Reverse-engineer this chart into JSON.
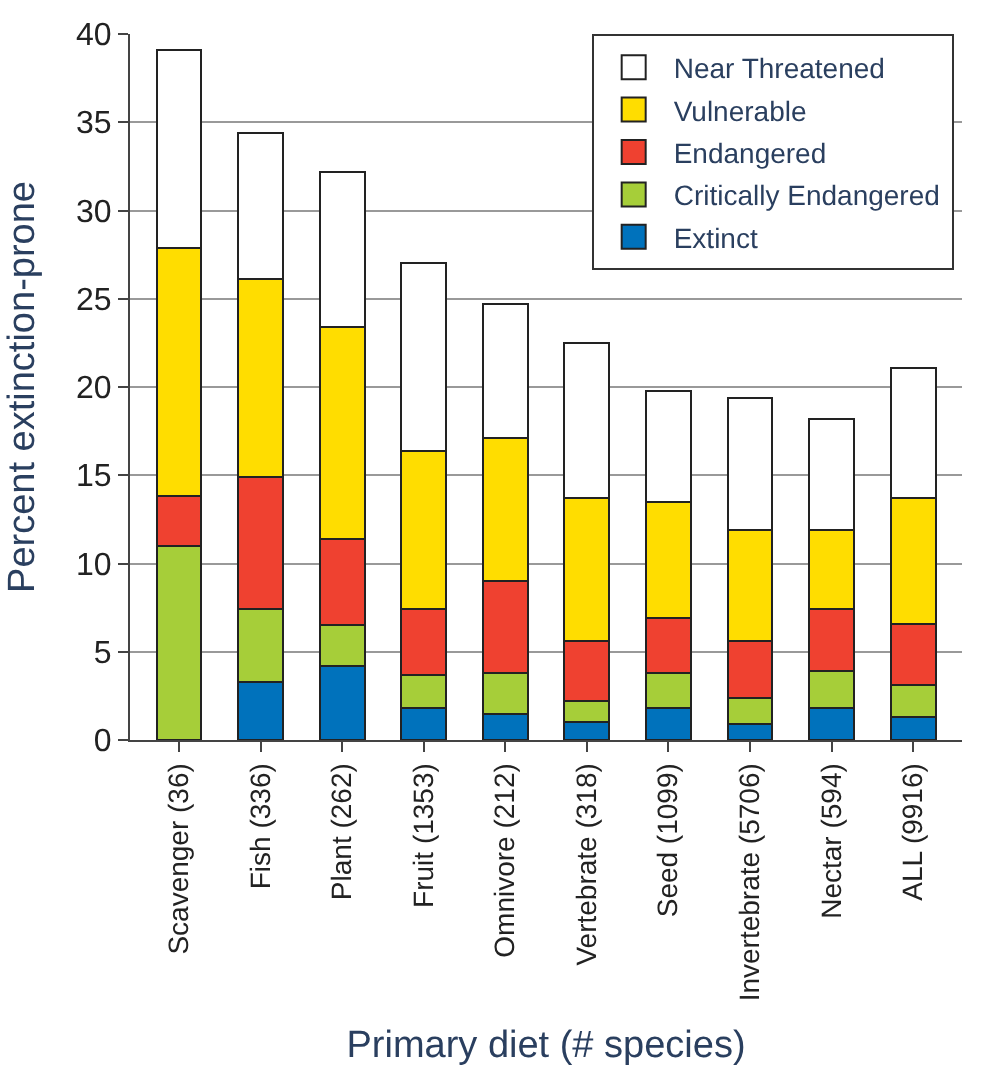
{
  "chart_data": {
    "type": "bar",
    "stacked": true,
    "xlabel": "Primary diet (# species)",
    "ylabel": "Percent extinction-prone",
    "categories": [
      "Scavenger (36)",
      "Fish (336)",
      "Plant (262)",
      "Fruit (1353)",
      "Omnivore (212)",
      "Vertebrate (318)",
      "Seed (1099)",
      "Invertebrate (5706)",
      "Nectar (594)",
      "ALL (9916)"
    ],
    "series": [
      {
        "name": "Extinct",
        "color": "#0072bc",
        "values": [
          0,
          3.3,
          4.2,
          1.8,
          1.5,
          1.0,
          1.8,
          0.9,
          1.8,
          1.3
        ]
      },
      {
        "name": "Critically Endangered",
        "color": "#a6ce39",
        "values": [
          11.0,
          4.1,
          2.3,
          1.9,
          2.3,
          1.2,
          2.0,
          1.5,
          2.1,
          1.8
        ]
      },
      {
        "name": "Endangered",
        "color": "#ef4130",
        "values": [
          2.8,
          7.5,
          4.9,
          3.7,
          5.2,
          3.4,
          3.1,
          3.2,
          3.5,
          3.5
        ]
      },
      {
        "name": "Vulnerable",
        "color": "#ffdd00",
        "values": [
          14.1,
          11.2,
          12.0,
          9.0,
          8.1,
          8.1,
          6.6,
          6.3,
          4.5,
          7.1
        ]
      },
      {
        "name": "Near Threatened",
        "color": "#ffffff",
        "values": [
          11.2,
          8.3,
          8.8,
          10.6,
          7.6,
          8.8,
          6.3,
          7.5,
          6.3,
          7.4
        ]
      }
    ],
    "ylim": [
      0,
      40
    ],
    "yticks": [
      0,
      5,
      10,
      15,
      20,
      25,
      30,
      35,
      40
    ],
    "grid": "y",
    "legend": "top right"
  }
}
